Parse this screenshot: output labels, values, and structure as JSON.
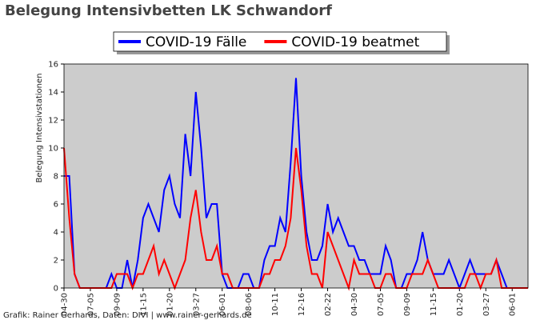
{
  "chart_data": {
    "type": "line",
    "title": "Belegung Intensivbetten LK Schwandorf",
    "ylabel": "Belegung Intensivstationen",
    "footer": "Grafik: Rainer Gerhards, Daten: DIVI | www.rainer-gerhards.de",
    "legend": "upper center",
    "grid": false,
    "background": "#cccccc",
    "categories": [
      "04-30",
      null,
      null,
      null,
      null,
      "07-05",
      null,
      null,
      null,
      null,
      "09-09",
      null,
      null,
      null,
      null,
      "11-15",
      null,
      null,
      null,
      null,
      "01-20",
      null,
      null,
      null,
      null,
      "03-27",
      null,
      null,
      null,
      null,
      "06-01",
      null,
      null,
      null,
      null,
      "08-06",
      null,
      null,
      null,
      null,
      "10-11",
      null,
      null,
      null,
      null,
      "12-16",
      null,
      null,
      null,
      null,
      "02-22",
      null,
      null,
      null,
      null,
      "04-30",
      null,
      null,
      null,
      null,
      "07-05",
      null,
      null,
      null,
      null,
      "09-09",
      null,
      null,
      null,
      null,
      "11-15",
      null,
      null,
      null,
      null,
      "01-20",
      null,
      null,
      null,
      null,
      "03-27",
      null,
      null,
      null,
      null,
      "06-01",
      null,
      null,
      null
    ],
    "series": [
      {
        "name": "COVID-19 Fälle",
        "color": "#0000ff",
        "values": [
          8,
          8,
          1,
          0,
          0,
          0,
          0,
          0,
          0,
          1,
          0,
          0,
          2,
          0,
          2,
          5,
          6,
          5,
          4,
          7,
          8,
          6,
          5,
          11,
          8,
          14,
          10,
          5,
          6,
          6,
          1,
          0,
          0,
          0,
          1,
          1,
          0,
          0,
          2,
          3,
          3,
          5,
          4,
          9,
          15,
          8,
          4,
          2,
          2,
          3,
          6,
          4,
          5,
          4,
          3,
          3,
          2,
          2,
          1,
          1,
          1,
          3,
          2,
          0,
          0,
          1,
          1,
          2,
          4,
          2,
          1,
          1,
          1,
          2,
          1,
          0,
          1,
          2,
          1,
          1,
          1,
          1,
          2,
          1,
          0,
          0,
          0,
          0,
          0
        ]
      },
      {
        "name": "COVID-19 beatmet",
        "color": "#ff0000",
        "values": [
          10,
          5,
          1,
          0,
          0,
          0,
          0,
          0,
          0,
          0,
          1,
          1,
          1,
          0,
          1,
          1,
          2,
          3,
          1,
          2,
          1,
          0,
          1,
          2,
          5,
          7,
          4,
          2,
          2,
          3,
          1,
          1,
          0,
          0,
          0,
          0,
          0,
          0,
          1,
          1,
          2,
          2,
          3,
          5,
          10,
          7,
          3,
          1,
          1,
          0,
          4,
          3,
          2,
          1,
          0,
          2,
          1,
          1,
          1,
          0,
          0,
          1,
          1,
          0,
          0,
          0,
          1,
          1,
          1,
          2,
          1,
          0,
          0,
          0,
          0,
          0,
          0,
          1,
          1,
          0,
          1,
          1,
          2,
          0,
          0,
          0,
          0,
          0,
          0
        ]
      }
    ],
    "ylim": [
      0,
      16
    ],
    "yticks": [
      0,
      2,
      4,
      6,
      8,
      10,
      12,
      14,
      16
    ]
  }
}
